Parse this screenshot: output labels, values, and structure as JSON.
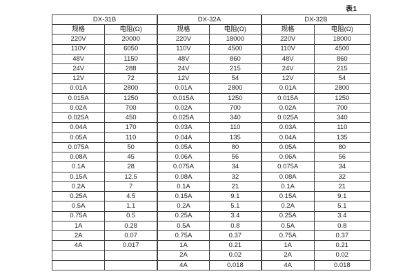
{
  "page": {
    "background": "#ffffff",
    "table_label": "表1"
  },
  "table": {
    "border_color": "#3f3f3f",
    "text_color": "#222222",
    "groups": [
      {
        "label": "DX-31B"
      },
      {
        "label": "DX-32A"
      },
      {
        "label": "DX-32B"
      }
    ],
    "sub_headers": [
      "规格",
      "电阻(Ω)"
    ],
    "rows": [
      [
        "220V",
        "20000",
        "220V",
        "18000",
        "220V",
        "18000"
      ],
      [
        "110V",
        "6050",
        "110V",
        "4500",
        "110V",
        "4500"
      ],
      [
        "48V",
        "1150",
        "48V",
        "860",
        "48V",
        "860"
      ],
      [
        "24V",
        "288",
        "24V",
        "215",
        "24V",
        "215"
      ],
      [
        "12V",
        "72",
        "12V",
        "54",
        "12V",
        "54"
      ],
      [
        "0.01A",
        "2800",
        "0.01A",
        "2800",
        "0.01A",
        "2800"
      ],
      [
        "0.015A",
        "1250",
        "0.015A",
        "1250",
        "0.015A",
        "1250"
      ],
      [
        "0.02A",
        "700",
        "0.02A",
        "700",
        "0.02A",
        "700"
      ],
      [
        "0.025A",
        "450",
        "0.025A",
        "340",
        "0.025A",
        "340"
      ],
      [
        "0.04A",
        "170",
        "0.03A",
        "110",
        "0.03A",
        "110"
      ],
      [
        "0.05A",
        "110",
        "0.04A",
        "135",
        "0.04A",
        "135"
      ],
      [
        "0.075A",
        "50",
        "0.05A",
        "80",
        "0.05A",
        "80"
      ],
      [
        "0.08A",
        "45",
        "0.06A",
        "56",
        "0.06A",
        "56"
      ],
      [
        "0.1A",
        "28",
        "0.075A",
        "34",
        "0.075A",
        "34"
      ],
      [
        "0.15A",
        "12.5",
        "0.08A",
        "32",
        "0.08A",
        "32"
      ],
      [
        "0.2A",
        "7",
        "0.1A",
        "21",
        "0.1A",
        "21"
      ],
      [
        "0.25A",
        "4.5",
        "0.15A",
        "9.1",
        "0.15A",
        "9.1"
      ],
      [
        "0.5A",
        "1.1",
        "0.2A",
        "5.1",
        "0.2A",
        "5.1"
      ],
      [
        "0.75A",
        "0.5",
        "0.25A",
        "3.4",
        "0.25A",
        "3.4"
      ],
      [
        "1A",
        "0.28",
        "0.5A",
        "0.8",
        "0.5A",
        "0.8"
      ],
      [
        "2A",
        "0.07",
        "0.75A",
        "0.37",
        "0.75A",
        "0.37"
      ],
      [
        "4A",
        "0.017",
        "1A",
        "0.21",
        "1A",
        "0.21"
      ],
      [
        "",
        "",
        "2A",
        "0.02",
        "2A",
        "0.02"
      ],
      [
        "",
        "",
        "4A",
        "0.018",
        "4A",
        "0.018"
      ]
    ]
  },
  "chart_data": {
    "type": "table",
    "title": "表1",
    "columns": [
      "DX-31B 规格",
      "DX-31B 电阻(Ω)",
      "DX-32A 规格",
      "DX-32A 电阻(Ω)",
      "DX-32B 规格",
      "DX-32B 电阻(Ω)"
    ]
  }
}
